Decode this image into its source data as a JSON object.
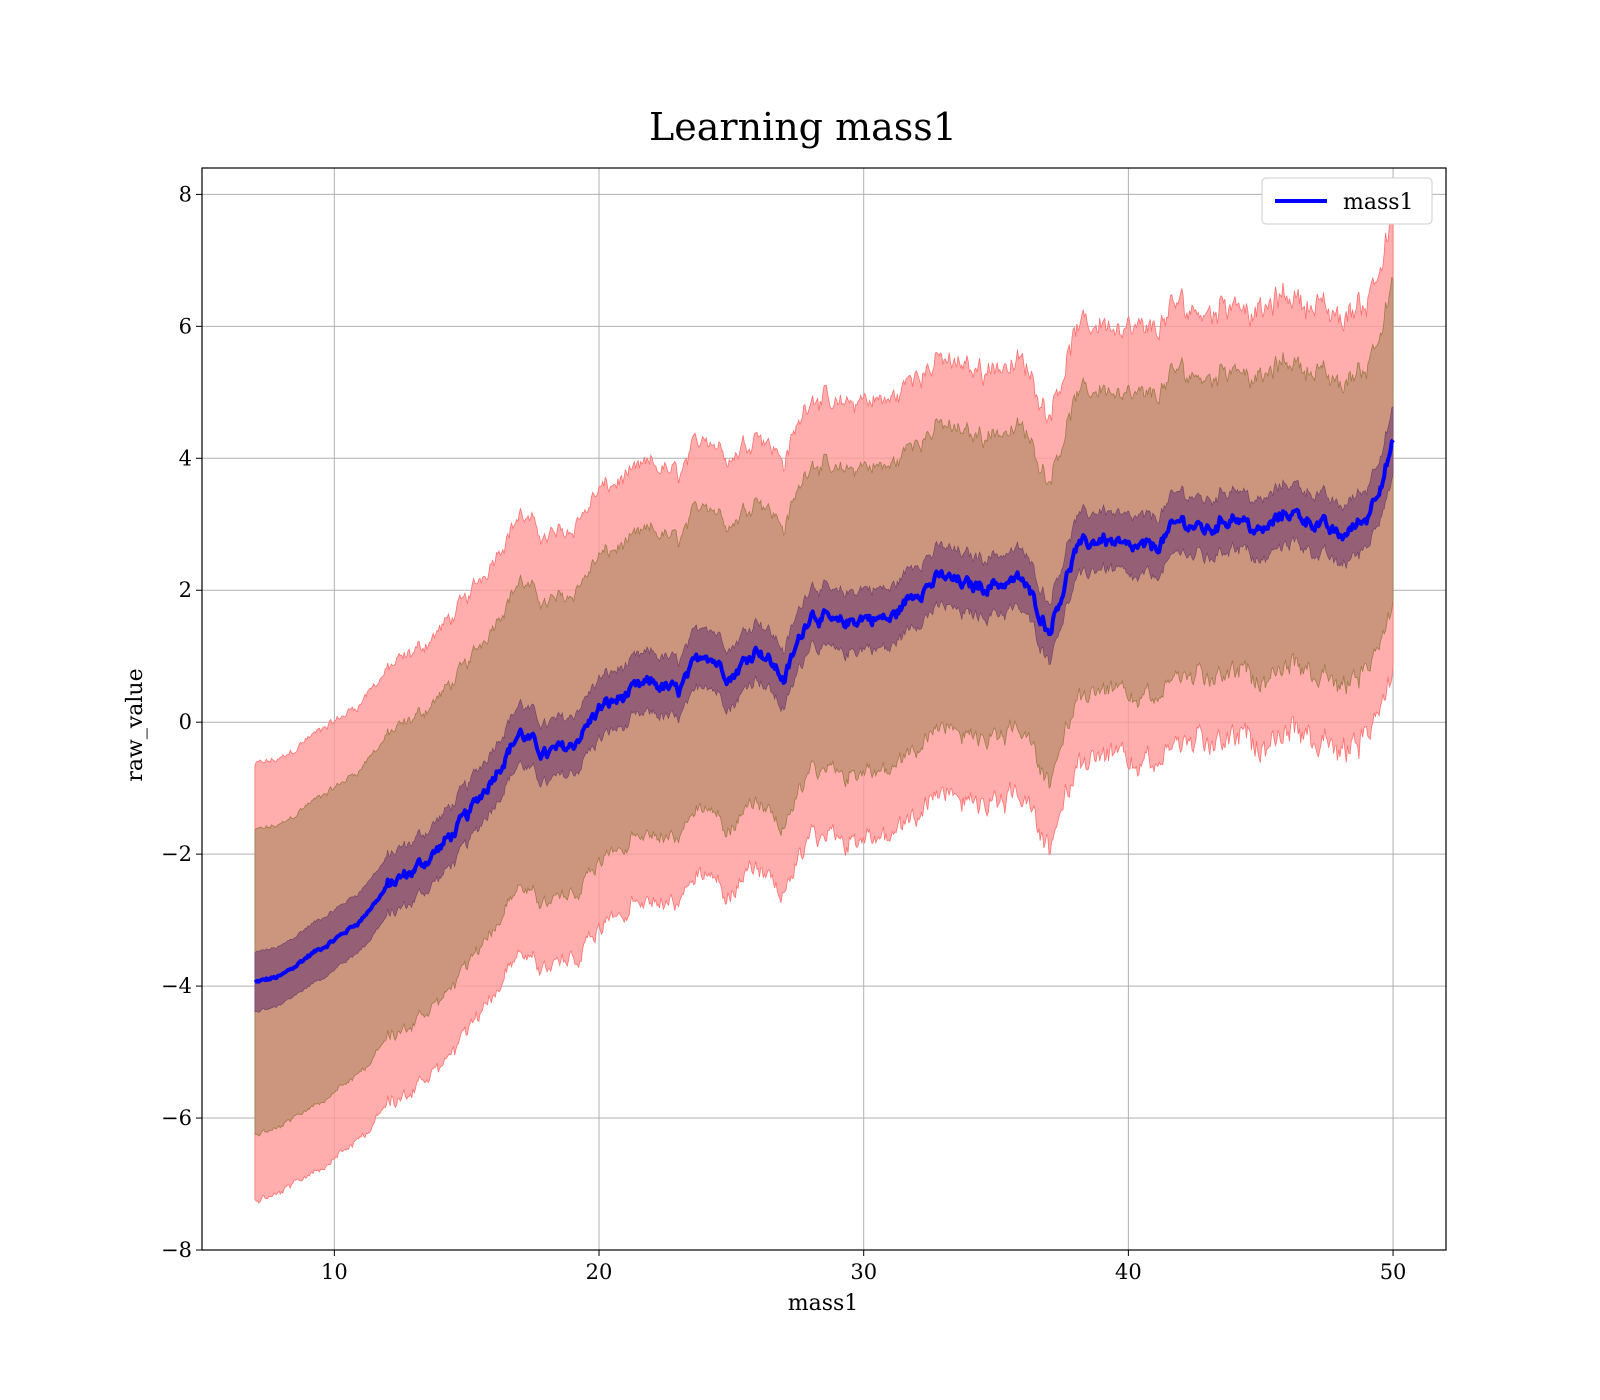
{
  "chart_data": {
    "type": "line",
    "title": "Learning mass1",
    "xlabel": "mass1",
    "ylabel": "raw_value",
    "xlim": [
      5,
      52
    ],
    "ylim": [
      -8,
      8.4
    ],
    "xticks": [
      10,
      20,
      30,
      40,
      50
    ],
    "yticks": [
      -8,
      -6,
      -4,
      -2,
      0,
      2,
      4,
      6,
      8
    ],
    "xtick_labels": [
      "10",
      "20",
      "30",
      "40",
      "50"
    ],
    "ytick_labels": [
      "−8",
      "−6",
      "−4",
      "−2",
      "0",
      "2",
      "4",
      "6",
      "8"
    ],
    "grid": true,
    "legend": {
      "position": "top-right",
      "entries": [
        "mass1"
      ]
    },
    "colors": {
      "line": "#0000ff",
      "band_outer": "#ff9999",
      "band_mid": "#c8957a",
      "band_inner": "#8f5a74"
    },
    "x": [
      7,
      8,
      9,
      10,
      11,
      12,
      13,
      14,
      15,
      16,
      17,
      18,
      19,
      20,
      21,
      22,
      23,
      24,
      25,
      26,
      27,
      28,
      29,
      30,
      31,
      32,
      33,
      34,
      35,
      36,
      37,
      38,
      39,
      40,
      41,
      42,
      43,
      44,
      45,
      46,
      47,
      48,
      49,
      50
    ],
    "series": [
      {
        "name": "mass1",
        "mean": [
          -3.95,
          -3.85,
          -3.55,
          -3.3,
          -3.0,
          -2.5,
          -2.25,
          -1.9,
          -1.45,
          -0.8,
          -0.15,
          -0.5,
          -0.35,
          0.2,
          0.4,
          0.6,
          0.45,
          1.1,
          0.7,
          1.15,
          0.65,
          1.7,
          1.45,
          1.6,
          1.55,
          2.0,
          2.2,
          2.05,
          2.1,
          2.15,
          1.4,
          2.6,
          2.8,
          2.6,
          2.65,
          3.05,
          2.9,
          3.15,
          2.85,
          3.2,
          3.05,
          2.8,
          3.1,
          4.2
        ],
        "band_inner": [
          0.45,
          0.45,
          0.45,
          0.45,
          0.45,
          0.45,
          0.45,
          0.45,
          0.45,
          0.45,
          0.45,
          0.45,
          0.45,
          0.45,
          0.45,
          0.45,
          0.45,
          0.45,
          0.45,
          0.45,
          0.45,
          0.45,
          0.45,
          0.45,
          0.45,
          0.45,
          0.45,
          0.45,
          0.45,
          0.45,
          0.45,
          0.45,
          0.45,
          0.45,
          0.45,
          0.45,
          0.45,
          0.45,
          0.45,
          0.45,
          0.45,
          0.45,
          0.45,
          0.5
        ],
        "band_mid": [
          2.3,
          2.3,
          2.3,
          2.3,
          2.3,
          2.3,
          2.3,
          2.3,
          2.3,
          2.3,
          2.3,
          2.3,
          2.3,
          2.3,
          2.3,
          2.3,
          2.3,
          2.3,
          2.3,
          2.3,
          2.3,
          2.3,
          2.3,
          2.3,
          2.3,
          2.3,
          2.3,
          2.3,
          2.3,
          2.3,
          2.3,
          2.3,
          2.3,
          2.3,
          2.3,
          2.3,
          2.3,
          2.3,
          2.3,
          2.3,
          2.3,
          2.3,
          2.3,
          2.4
        ],
        "band_outer": [
          3.3,
          3.3,
          3.3,
          3.3,
          3.3,
          3.3,
          3.3,
          3.3,
          3.3,
          3.3,
          3.3,
          3.3,
          3.3,
          3.3,
          3.3,
          3.3,
          3.3,
          3.3,
          3.3,
          3.3,
          3.3,
          3.3,
          3.3,
          3.3,
          3.3,
          3.3,
          3.3,
          3.3,
          3.3,
          3.3,
          3.3,
          3.3,
          3.3,
          3.3,
          3.3,
          3.3,
          3.3,
          3.3,
          3.3,
          3.3,
          3.3,
          3.3,
          3.3,
          3.4
        ]
      }
    ]
  }
}
